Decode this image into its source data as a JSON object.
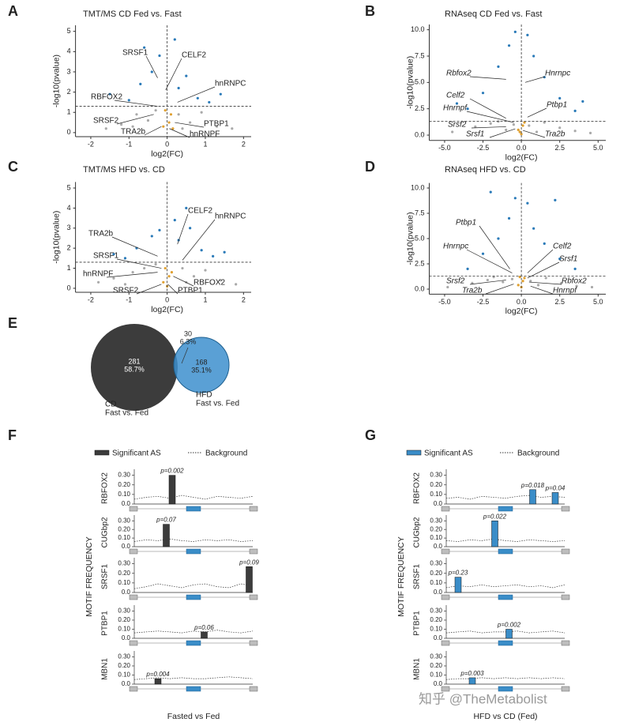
{
  "chart_data": [
    {
      "panel": "A",
      "type": "volcano",
      "title": "TMT/MS CD Fed vs. Fast",
      "x_label": "log2(FC)",
      "y_label": "-log10(pvalue)",
      "xlim": [
        -2.4,
        2.2
      ],
      "ylim": [
        -0.2,
        5.3
      ],
      "xticks": [
        -2,
        -1,
        0,
        1,
        2
      ],
      "yticks": [
        0,
        1,
        2,
        3,
        4,
        5
      ],
      "threshold": 1.3,
      "vline": 0,
      "series": [
        {
          "color": "#a9a9a9",
          "x": [
            -1.2,
            -0.8,
            -0.5,
            -0.3,
            0.3,
            0.6,
            0.9,
            1.3,
            -1.6,
            1.7,
            -0.9,
            0.4
          ],
          "y": [
            0.4,
            0.9,
            0.6,
            1.1,
            0.9,
            0.5,
            1.0,
            0.3,
            0.2,
            0.2,
            0.3,
            0.2
          ]
        },
        {
          "color": "#e0a030",
          "x": [
            -0.1,
            0.05,
            0.1,
            -0.05,
            0.15
          ],
          "y": [
            0.3,
            0.5,
            0.9,
            1.1,
            0.2
          ]
        },
        {
          "color": "#2a7ab8",
          "x": [
            -1.0,
            -0.7,
            -0.4,
            -0.2,
            0.3,
            0.5,
            0.8,
            1.1,
            -1.5,
            1.4,
            -0.6,
            0.2
          ],
          "y": [
            1.6,
            2.4,
            3.0,
            3.8,
            2.2,
            2.8,
            1.7,
            1.5,
            1.9,
            1.9,
            4.2,
            4.6
          ]
        }
      ],
      "annotations": [
        {
          "text": "SRSF1",
          "x": -0.25,
          "y": 2.7,
          "italic": false
        },
        {
          "text": "CELF2",
          "x": -0.04,
          "y": 2.1,
          "italic": false
        },
        {
          "text": "hnRNPC",
          "x": 0.27,
          "y": 1.5,
          "italic": false
        },
        {
          "text": "RBFOX2",
          "x": -0.25,
          "y": 1.3,
          "italic": false
        },
        {
          "text": "SRSF2",
          "x": -0.35,
          "y": 0.9,
          "italic": false
        },
        {
          "text": "PTBP1",
          "x": 0.2,
          "y": 0.5,
          "italic": false
        },
        {
          "text": "TRA2b",
          "x": -0.15,
          "y": 0.3,
          "italic": false
        },
        {
          "text": "hnRNPF",
          "x": 0.06,
          "y": 0.2,
          "italic": false
        }
      ]
    },
    {
      "panel": "B",
      "type": "volcano",
      "title": "RNAseq CD Fed vs. Fast",
      "x_label": "log2(FC)",
      "y_label": "-log10(pvalue)",
      "xlim": [
        -6,
        5.5
      ],
      "ylim": [
        -0.5,
        10.5
      ],
      "xticks": [
        {
          "value": -5,
          "label": "-5.0"
        },
        {
          "value": -2.5,
          "label": "-2.5"
        },
        {
          "value": 0,
          "label": "0.0"
        },
        {
          "value": 2.5,
          "label": "2.5"
        },
        {
          "value": 5,
          "label": "5.0"
        }
      ],
      "yticks": [
        {
          "value": 0,
          "label": "0.0"
        },
        {
          "value": 2.5,
          "label": "2.5"
        },
        {
          "value": 5,
          "label": "5.0"
        },
        {
          "value": 7.5,
          "label": "7.5"
        },
        {
          "value": 10,
          "label": "10.0"
        }
      ],
      "threshold": 1.3,
      "vline": 0,
      "series": [
        {
          "color": "#a9a9a9",
          "x": [
            -4.5,
            -3,
            -2,
            -1,
            0.5,
            1.5,
            2.5,
            3.5,
            4.5,
            -1.5,
            1.0,
            -0.5
          ],
          "y": [
            0.3,
            0.8,
            1.1,
            0.5,
            0.9,
            1.2,
            0.7,
            0.4,
            0.2,
            1.3,
            0.3,
            1.0
          ]
        },
        {
          "color": "#e0a030",
          "x": [
            -0.2,
            0.1,
            0.2,
            -0.1,
            0
          ],
          "y": [
            0.5,
            0.9,
            1.2,
            0.3,
            0.1
          ]
        },
        {
          "color": "#2a7ab8",
          "x": [
            -3.5,
            -2.5,
            -1.5,
            -0.8,
            -0.4,
            0.4,
            0.8,
            1.5,
            2.5,
            3.5,
            -4.2,
            4.0
          ],
          "y": [
            2.5,
            4.0,
            6.5,
            8.5,
            9.8,
            9.5,
            7.5,
            5.5,
            3.5,
            2.3,
            3.0,
            3.2
          ]
        }
      ],
      "annotations": [
        {
          "text": "Rbfox2",
          "x": -1.0,
          "y": 5.3,
          "italic": true
        },
        {
          "text": "Hnrnpc",
          "x": 0.25,
          "y": 5.0,
          "italic": true
        },
        {
          "text": "Celf2",
          "x": -1.0,
          "y": 1.6,
          "italic": true
        },
        {
          "text": "Hnrnpf",
          "x": -0.5,
          "y": 1.2,
          "italic": true
        },
        {
          "text": "Ptbp1",
          "x": 0.4,
          "y": 1.7,
          "italic": true
        },
        {
          "text": "Srsf2",
          "x": -1.0,
          "y": 0.8,
          "italic": true
        },
        {
          "text": "Srsf1",
          "x": -0.4,
          "y": 0.6,
          "italic": true
        },
        {
          "text": "Tra2b",
          "x": 0.1,
          "y": 0.45,
          "italic": true
        }
      ]
    },
    {
      "panel": "C",
      "type": "volcano",
      "title": "TMT/MS HFD vs. CD",
      "x_label": "log2(FC)",
      "y_label": "-log10(pvalue)",
      "xlim": [
        -2.4,
        2.2
      ],
      "ylim": [
        -0.2,
        5.3
      ],
      "xticks": [
        -2,
        -1,
        0,
        1,
        2
      ],
      "yticks": [
        0,
        1,
        2,
        3,
        4,
        5
      ],
      "threshold": 1.3,
      "vline": 0,
      "series": [
        {
          "color": "#a9a9a9",
          "x": [
            -1.4,
            -0.9,
            -0.6,
            -0.3,
            0.4,
            0.7,
            1.0,
            1.4,
            -1.8,
            1.8,
            -1.1,
            0.5
          ],
          "y": [
            0.5,
            0.8,
            1.0,
            1.2,
            1.0,
            0.6,
            0.9,
            0.4,
            0.3,
            0.2,
            0.2,
            0.3
          ]
        },
        {
          "color": "#e0a030",
          "x": [
            -0.1,
            0.05,
            0.12,
            -0.05,
            0.0
          ],
          "y": [
            0.3,
            0.6,
            0.8,
            1.0,
            0.1
          ]
        },
        {
          "color": "#2a7ab8",
          "x": [
            -1.1,
            -0.8,
            -0.4,
            -0.2,
            0.3,
            0.6,
            0.9,
            1.2,
            -1.4,
            1.5,
            0.5,
            0.2
          ],
          "y": [
            1.5,
            2.0,
            2.6,
            2.9,
            2.4,
            3.0,
            1.9,
            1.6,
            1.7,
            1.8,
            4.0,
            3.4
          ]
        }
      ],
      "annotations": [
        {
          "text": "CELF2",
          "x": 0.27,
          "y": 2.2,
          "italic": false
        },
        {
          "text": "hnRNPC",
          "x": 0.4,
          "y": 1.4,
          "italic": false
        },
        {
          "text": "TRA2b",
          "x": -0.25,
          "y": 1.6,
          "italic": false
        },
        {
          "text": "SRSF1",
          "x": -0.15,
          "y": 1.0,
          "italic": false
        },
        {
          "text": "hnRNPF",
          "x": -0.25,
          "y": 0.8,
          "italic": false
        },
        {
          "text": "RBFOX2",
          "x": 0.16,
          "y": 0.6,
          "italic": false
        },
        {
          "text": "SRSF2",
          "x": -0.15,
          "y": 0.2,
          "italic": false
        },
        {
          "text": "PTBP1",
          "x": 0.02,
          "y": 0.2,
          "italic": false
        }
      ]
    },
    {
      "panel": "D",
      "type": "volcano",
      "title": "RNAseq HFD vs. CD",
      "x_label": "log2(FC)",
      "y_label": "-log10(pvalue)",
      "xlim": [
        -6,
        5.5
      ],
      "ylim": [
        -0.5,
        10.5
      ],
      "xticks": [
        {
          "value": -5,
          "label": "-5.0"
        },
        {
          "value": -2.5,
          "label": "-2.5"
        },
        {
          "value": 0,
          "label": "0.0"
        },
        {
          "value": 2.5,
          "label": "2.5"
        },
        {
          "value": 5,
          "label": "5.0"
        }
      ],
      "yticks": [
        {
          "value": 0,
          "label": "0.0"
        },
        {
          "value": 2.5,
          "label": "2.5"
        },
        {
          "value": 5,
          "label": "5.0"
        },
        {
          "value": 7.5,
          "label": "7.5"
        },
        {
          "value": 10,
          "label": "10.0"
        }
      ],
      "threshold": 1.3,
      "vline": 0,
      "series": [
        {
          "color": "#a9a9a9",
          "x": [
            -4.8,
            -3.2,
            -2.2,
            -1.2,
            0.6,
            1.6,
            2.6,
            3.6,
            4.6,
            -1.8,
            1.1,
            -0.6
          ],
          "y": [
            0.2,
            0.6,
            0.9,
            0.7,
            0.8,
            1.1,
            0.6,
            0.3,
            0.2,
            1.2,
            0.4,
            1.0
          ]
        },
        {
          "color": "#e0a030",
          "x": [
            -0.2,
            0.1,
            0.2,
            -0.1,
            0
          ],
          "y": [
            0.4,
            0.8,
            1.1,
            1.2,
            0.2
          ]
        },
        {
          "color": "#2a7ab8",
          "x": [
            -3.5,
            -2.5,
            -1.5,
            -0.8,
            -0.4,
            0.4,
            0.8,
            1.5,
            2.5,
            3.5,
            -2.0,
            2.2
          ],
          "y": [
            2.0,
            3.5,
            5.0,
            7.0,
            9.0,
            8.5,
            6.0,
            4.5,
            3.0,
            2.0,
            9.6,
            8.8
          ]
        }
      ],
      "annotations": [
        {
          "text": "Ptbp1",
          "x": -0.75,
          "y": 2.0,
          "italic": true
        },
        {
          "text": "Hnrnpc",
          "x": -0.6,
          "y": 1.6,
          "italic": true
        },
        {
          "text": "Celf2",
          "x": 0.4,
          "y": 1.6,
          "italic": true
        },
        {
          "text": "Srsf1",
          "x": 0.4,
          "y": 1.1,
          "italic": true
        },
        {
          "text": "Srsf2",
          "x": -1.0,
          "y": 0.9,
          "italic": true
        },
        {
          "text": "Rbfox2",
          "x": 0.5,
          "y": 0.7,
          "italic": true
        },
        {
          "text": "Tra2b",
          "x": -0.5,
          "y": 0.5,
          "italic": true
        },
        {
          "text": "Hnrnpf",
          "x": 0.6,
          "y": 0.3,
          "italic": true
        }
      ]
    },
    {
      "panel": "E",
      "type": "venn",
      "sets": [
        {
          "name": "CD",
          "subtitle": "Fast vs. Fed",
          "color": "#3c3c3c"
        },
        {
          "name": "HFD",
          "subtitle": "Fast vs. Fed",
          "color": "#3d8fce"
        }
      ],
      "counts": [
        281,
        30,
        168
      ],
      "values": [
        58.7,
        6.3,
        35.1
      ],
      "value_labels": [
        "58.7%",
        "6.3%",
        "35.1%"
      ]
    },
    {
      "panel": "F",
      "type": "motif",
      "y_label": "MOTIF FREQUENCY",
      "x_label": "Fasted vs Fed",
      "series": [
        {
          "name": "Significant AS",
          "color": "#3c3c3c"
        },
        {
          "name": "Background",
          "dashed": true
        }
      ],
      "xlim": [
        0,
        100
      ],
      "ylim": [
        0,
        0.33
      ],
      "yticks": [
        {
          "value": 0,
          "label": "0.0"
        },
        {
          "value": 0.1,
          "label": "0.10"
        },
        {
          "value": 0.2,
          "label": "0.20"
        },
        {
          "value": 0.3,
          "label": "0.30"
        }
      ],
      "background_x": [
        0,
        10,
        20,
        30,
        40,
        50,
        60,
        70,
        80,
        90,
        100
      ],
      "subplots": [
        {
          "name": "RBFOX2",
          "bars": [
            {
              "x": 32,
              "value": 0.3,
              "label": "p=0.002"
            }
          ],
          "background": [
            0.05,
            0.07,
            0.08,
            0.06,
            0.09,
            0.07,
            0.05,
            0.08,
            0.07,
            0.06,
            0.08
          ]
        },
        {
          "name": "CUGbp2",
          "bars": [
            {
              "x": 27,
              "value": 0.26,
              "label": "p=0.07"
            }
          ],
          "background": [
            0.06,
            0.08,
            0.07,
            0.09,
            0.07,
            0.06,
            0.08,
            0.07,
            0.08,
            0.06,
            0.07
          ]
        },
        {
          "name": "SRSF1",
          "bars": [
            {
              "x": 97,
              "value": 0.27,
              "label": "p=0.09"
            }
          ],
          "background": [
            0.04,
            0.06,
            0.09,
            0.07,
            0.05,
            0.08,
            0.09,
            0.06,
            0.05,
            0.09,
            0.07
          ]
        },
        {
          "name": "PTBP1",
          "bars": [
            {
              "x": 59,
              "value": 0.07,
              "label": "p=0.06"
            }
          ],
          "background": [
            0.06,
            0.07,
            0.08,
            0.07,
            0.06,
            0.08,
            0.07,
            0.09,
            0.07,
            0.06,
            0.08
          ]
        },
        {
          "name": "MBN1",
          "bars": [
            {
              "x": 20,
              "value": 0.06,
              "label": "p=0.004"
            }
          ],
          "background": [
            0.05,
            0.06,
            0.07,
            0.06,
            0.07,
            0.06,
            0.06,
            0.07,
            0.08,
            0.07,
            0.06
          ]
        }
      ]
    },
    {
      "panel": "G",
      "type": "motif",
      "y_label": "MOTIF FREQUENCY",
      "x_label": "HFD vs CD (Fed)",
      "series": [
        {
          "name": "Significant AS",
          "color": "#3a8dc8"
        },
        {
          "name": "Background",
          "dashed": true
        }
      ],
      "xlim": [
        0,
        100
      ],
      "ylim": [
        0,
        0.33
      ],
      "yticks": [
        {
          "value": 0,
          "label": "0.0"
        },
        {
          "value": 0.1,
          "label": "0.10"
        },
        {
          "value": 0.2,
          "label": "0.20"
        },
        {
          "value": 0.3,
          "label": "0.30"
        }
      ],
      "background_x": [
        0,
        10,
        20,
        30,
        40,
        50,
        60,
        70,
        80,
        90,
        100
      ],
      "subplots": [
        {
          "name": "RBFOX2",
          "bars": [
            {
              "x": 73,
              "value": 0.15,
              "label": "p=0.018"
            },
            {
              "x": 92,
              "value": 0.12,
              "label": "p=0.04"
            }
          ],
          "background": [
            0.06,
            0.07,
            0.05,
            0.08,
            0.07,
            0.06,
            0.08,
            0.09,
            0.07,
            0.08,
            0.07
          ]
        },
        {
          "name": "CUGbp2",
          "bars": [
            {
              "x": 41,
              "value": 0.3,
              "label": "p=0.022"
            }
          ],
          "background": [
            0.07,
            0.06,
            0.08,
            0.07,
            0.09,
            0.07,
            0.06,
            0.08,
            0.07,
            0.06,
            0.07
          ]
        },
        {
          "name": "SRSF1",
          "bars": [
            {
              "x": 10,
              "value": 0.16,
              "label": "p=0.23"
            }
          ],
          "background": [
            0.05,
            0.07,
            0.06,
            0.08,
            0.06,
            0.07,
            0.08,
            0.06,
            0.07,
            0.05,
            0.08
          ]
        },
        {
          "name": "PTBP1",
          "bars": [
            {
              "x": 53,
              "value": 0.1,
              "label": "p=0.002"
            }
          ],
          "background": [
            0.06,
            0.07,
            0.08,
            0.06,
            0.07,
            0.07,
            0.08,
            0.06,
            0.07,
            0.08,
            0.06
          ]
        },
        {
          "name": "MBN1",
          "bars": [
            {
              "x": 22,
              "value": 0.07,
              "label": "p=0.003"
            }
          ],
          "background": [
            0.05,
            0.06,
            0.06,
            0.07,
            0.06,
            0.07,
            0.06,
            0.07,
            0.06,
            0.07,
            0.06
          ]
        }
      ]
    }
  ],
  "watermark": "知乎 @TheMetabolist"
}
